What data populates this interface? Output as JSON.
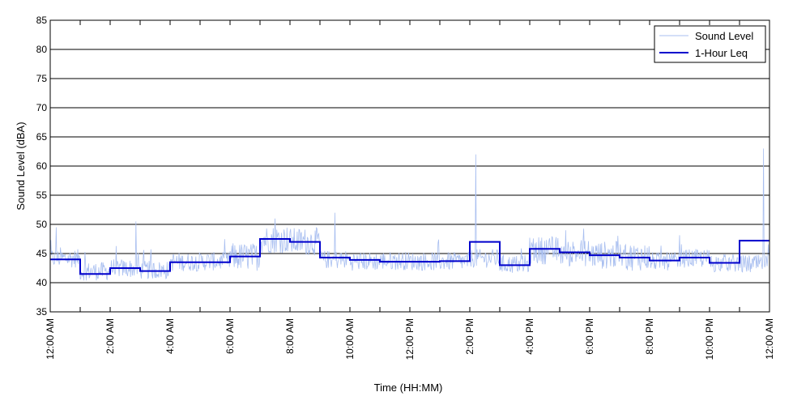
{
  "chart_data": {
    "type": "line",
    "xlabel": "Time (HH:MM)",
    "ylabel": "Sound Level (dBA)",
    "xlim": [
      0,
      24
    ],
    "ylim": [
      35,
      85
    ],
    "y_ticks": [
      35,
      40,
      45,
      50,
      55,
      60,
      65,
      70,
      75,
      80,
      85
    ],
    "x_ticks": [
      0,
      2,
      4,
      6,
      8,
      10,
      12,
      14,
      16,
      18,
      20,
      22,
      24
    ],
    "x_tick_labels": [
      "12:00 AM",
      "2:00 AM",
      "4:00 AM",
      "6:00 AM",
      "8:00 AM",
      "10:00 AM",
      "12:00 PM",
      "2:00 PM",
      "4:00 PM",
      "6:00 PM",
      "8:00 PM",
      "10:00 PM",
      "12:00 AM"
    ],
    "minor_x_ticks": [
      1,
      3,
      5,
      7,
      9,
      11,
      13,
      15,
      17,
      19,
      21,
      23
    ],
    "grid": "horizontal",
    "legend_position": "top-right",
    "colors": {
      "sound_level": "#a9bff0",
      "leq": "#0000cc"
    },
    "series": [
      {
        "name": "Sound Level",
        "style": "thin-line",
        "hourly_mean": [
          44.0,
          41.8,
          42.3,
          42.0,
          43.4,
          43.5,
          44.2,
          47.2,
          46.8,
          43.8,
          43.5,
          43.6,
          43.5,
          43.5,
          44.0,
          43.0,
          45.3,
          44.9,
          44.5,
          44.2,
          43.5,
          44.0,
          43.2,
          43.0
        ],
        "spikes": [
          {
            "x": 0.2,
            "y": 49.5
          },
          {
            "x": 2.85,
            "y": 50.5
          },
          {
            "x": 7.5,
            "y": 51.0
          },
          {
            "x": 9.5,
            "y": 52.0
          },
          {
            "x": 14.2,
            "y": 62.0
          },
          {
            "x": 17.2,
            "y": 49.0
          },
          {
            "x": 23.8,
            "y": 63.0
          }
        ]
      },
      {
        "name": "1-Hour Leq",
        "style": "step",
        "values": [
          44.0,
          41.5,
          42.5,
          42.0,
          43.5,
          43.5,
          44.5,
          47.5,
          47.0,
          44.3,
          43.9,
          43.6,
          43.6,
          43.7,
          47.0,
          43.0,
          45.8,
          45.2,
          44.7,
          44.3,
          43.8,
          44.3,
          43.4,
          47.2
        ]
      }
    ]
  }
}
